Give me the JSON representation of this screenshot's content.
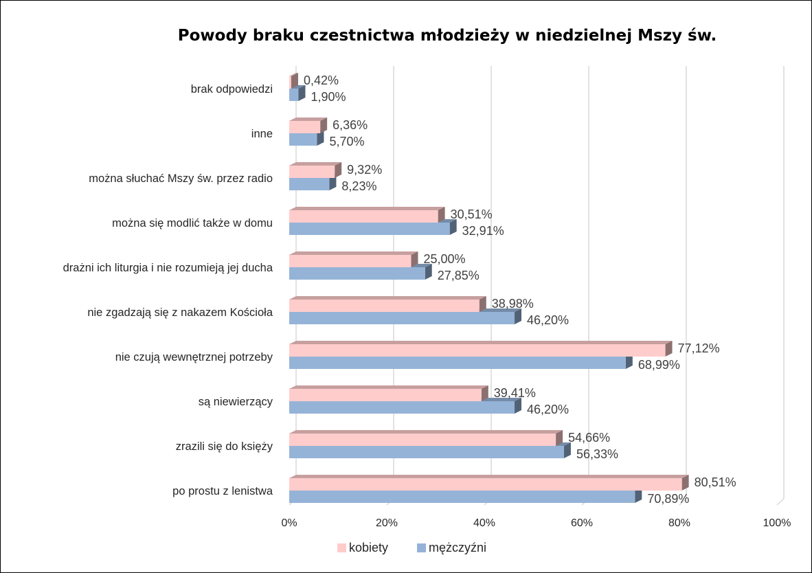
{
  "chart_data": {
    "type": "bar",
    "orientation": "horizontal",
    "title": "Powody braku czestnictwa młodzieży w niedzielnej Mszy św.",
    "categories": [
      "brak odpowiedzi",
      "inne",
      "można słuchać Mszy św. przez radio",
      "można się modlić także w domu",
      "drażni ich liturgia i nie rozumieją jej ducha",
      "nie zgadzają się z nakazem Kościoła",
      "nie czują wewnętrznej potrzeby",
      "są niewierzący",
      "zrazili się do księży",
      "po prostu z lenistwa"
    ],
    "series": [
      {
        "name": "kobiety",
        "color": "#FFCCCC",
        "values": [
          0.42,
          6.36,
          9.32,
          30.51,
          25.0,
          38.98,
          77.12,
          39.41,
          54.66,
          80.51
        ],
        "labels": [
          "0,42%",
          "6,36%",
          "9,32%",
          "30,51%",
          "25,00%",
          "38,98%",
          "77,12%",
          "39,41%",
          "54,66%",
          "80,51%"
        ]
      },
      {
        "name": "mężczyźni",
        "color": "#95B3D7",
        "values": [
          1.9,
          5.7,
          8.23,
          32.91,
          27.85,
          46.2,
          68.99,
          46.2,
          56.33,
          70.89
        ],
        "labels": [
          "1,90%",
          "5,70%",
          "8,23%",
          "32,91%",
          "27,85%",
          "46,20%",
          "68,99%",
          "46,20%",
          "56,33%",
          "70,89%"
        ]
      }
    ],
    "xlim": [
      0,
      100
    ],
    "x_ticks": [
      "0%",
      "20%",
      "40%",
      "60%",
      "80%",
      "100%"
    ],
    "grid": true,
    "legend_position": "bottom",
    "style": "3d-bar"
  }
}
